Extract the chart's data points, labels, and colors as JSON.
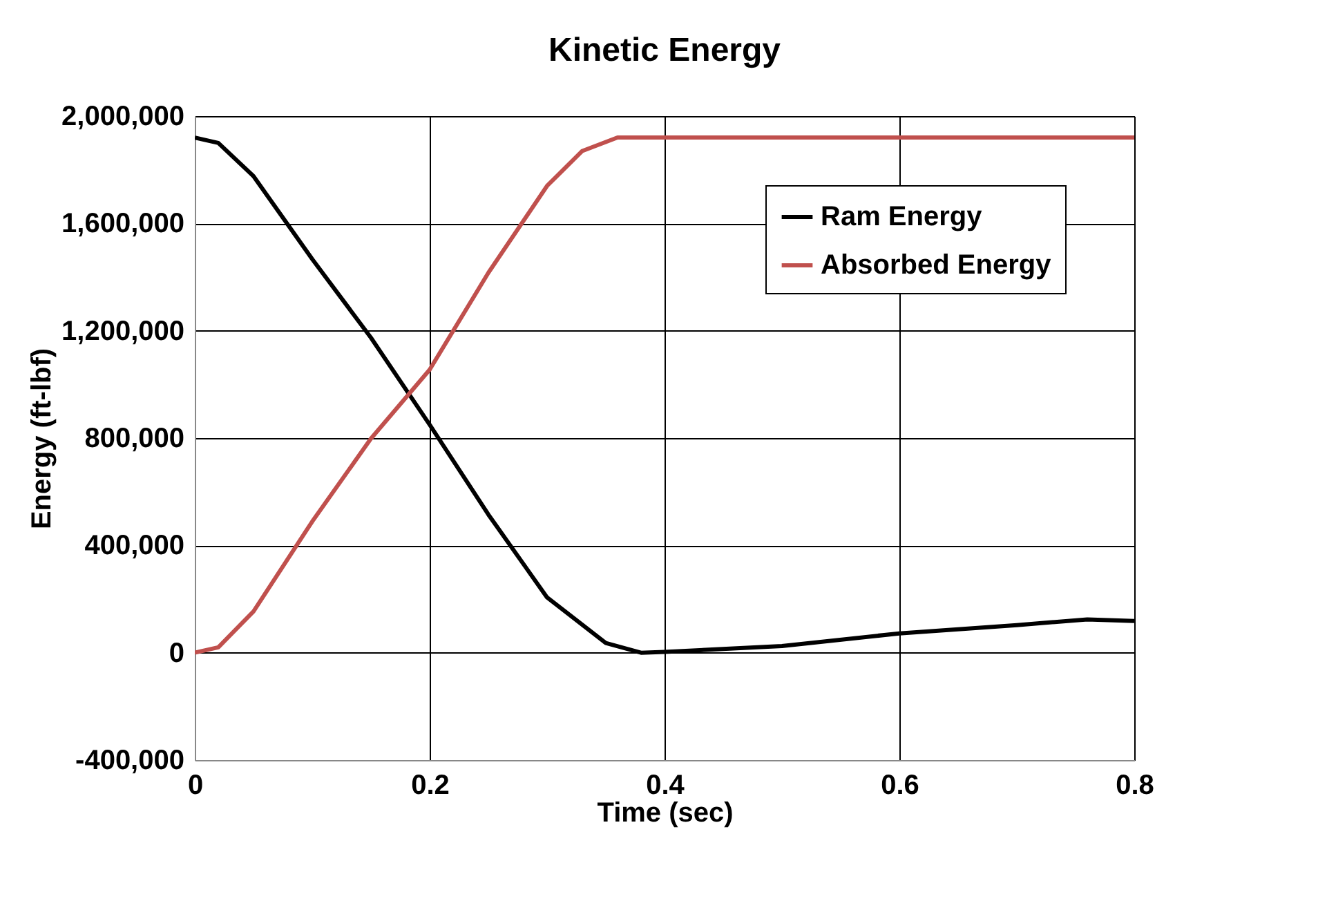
{
  "chart_data": {
    "type": "line",
    "title": "Kinetic Energy",
    "xlabel": "Time (sec)",
    "ylabel": "Energy (ft-lbf)",
    "xlim": [
      0,
      0.8
    ],
    "xticks": [
      0,
      0.2,
      0.4,
      0.6,
      0.8
    ],
    "ylim": [
      -400000,
      2000000
    ],
    "yticks": [
      {
        "value": -400000,
        "label": "-400,000"
      },
      0,
      {
        "value": 400000,
        "label": "400,000"
      },
      {
        "value": 800000,
        "label": "800,000"
      },
      {
        "value": 1200000,
        "label": "1,200,000"
      },
      {
        "value": 1600000,
        "label": "1,600,000"
      },
      {
        "value": 2000000,
        "label": "2,000,000"
      }
    ],
    "grid": true,
    "legend": "top right",
    "marker": "none",
    "line_style": "solid",
    "series": [
      {
        "name": "Ram Energy",
        "color": "#000000",
        "x": [
          0,
          0.02,
          0.05,
          0.1,
          0.15,
          0.2,
          0.25,
          0.3,
          0.35,
          0.38,
          0.4,
          0.5,
          0.6,
          0.7,
          0.76,
          0.8
        ],
        "values": [
          1920000,
          1900000,
          1776000,
          1467000,
          1174000,
          850000,
          515000,
          206000,
          36000,
          0,
          3000,
          25000,
          72000,
          103000,
          124000,
          118000
        ]
      },
      {
        "name": "Absorbed Energy",
        "color": "#c0504d",
        "x": [
          0,
          0.02,
          0.05,
          0.1,
          0.15,
          0.2,
          0.25,
          0.3,
          0.33,
          0.36,
          0.5,
          0.8
        ],
        "values": [
          0,
          20000,
          154000,
          489000,
          798000,
          1055000,
          1416000,
          1740000,
          1870000,
          1920000,
          1920000,
          1920000
        ]
      }
    ]
  }
}
